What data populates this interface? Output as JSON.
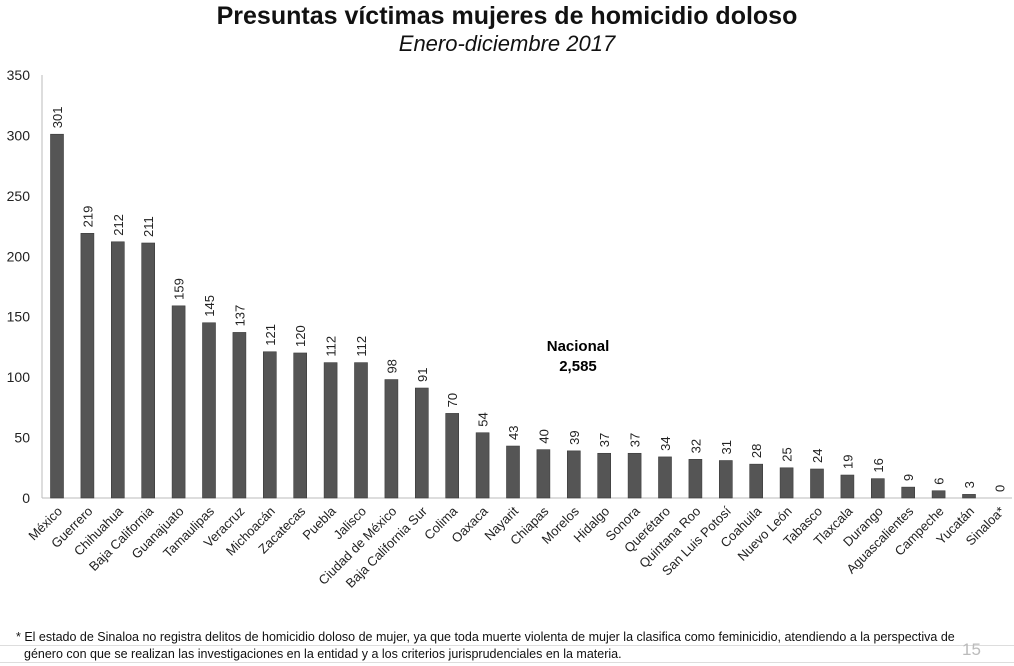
{
  "chart_data": {
    "type": "bar",
    "title": "Presuntas víctimas mujeres de homicidio doloso",
    "subtitle": "Enero-diciembre 2017",
    "categories": [
      "México",
      "Guerrero",
      "Chihuahua",
      "Baja California",
      "Guanajuato",
      "Tamaulipas",
      "Veracruz",
      "Michoacán",
      "Zacatecas",
      "Puebla",
      "Jalisco",
      "Ciudad de México",
      "Baja California Sur",
      "Colima",
      "Oaxaca",
      "Nayarit",
      "Chiapas",
      "Morelos",
      "Hidalgo",
      "Sonora",
      "Querétaro",
      "Quintana Roo",
      "San Luis Potosí",
      "Coahuila",
      "Nuevo León",
      "Tabasco",
      "Tlaxcala",
      "Durango",
      "Aguascalientes",
      "Campeche",
      "Yucatán",
      "Sinaloa*"
    ],
    "values": [
      301,
      219,
      212,
      211,
      159,
      145,
      137,
      121,
      120,
      112,
      112,
      98,
      91,
      70,
      54,
      43,
      40,
      39,
      37,
      37,
      34,
      32,
      31,
      28,
      25,
      24,
      19,
      16,
      9,
      6,
      3,
      0
    ],
    "ylim": [
      0,
      350
    ],
    "yticks": [
      "0",
      "50",
      "100",
      "150",
      "200",
      "250",
      "300",
      "350"
    ],
    "grid": false,
    "bar_color": "#555555",
    "annotation": {
      "label": "Nacional",
      "value": "2,585"
    }
  },
  "footnote": {
    "line1": "* El estado de Sinaloa no registra delitos de homicidio doloso de mujer, ya que toda muerte violenta de mujer la clasifica como feminicidio, atendiendo a la perspectiva de",
    "line2": "género con que se realizan las investigaciones en la entidad y a los criterios jurisprudenciales en la materia."
  },
  "page_number": "15"
}
